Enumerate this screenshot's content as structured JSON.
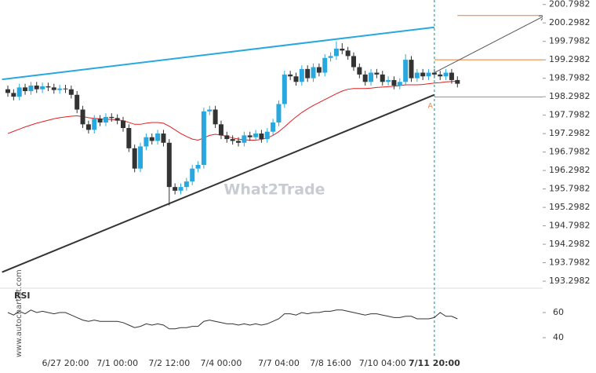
{
  "chart_data": {
    "type": "candlestick",
    "categories": [
      null,
      null,
      null,
      null,
      null,
      null,
      null,
      null,
      null,
      null,
      "6/27 20:00",
      null,
      null,
      null,
      null,
      null,
      null,
      null,
      null,
      "7/1 00:00",
      null,
      null,
      null,
      null,
      null,
      null,
      null,
      null,
      "7/2 12:00",
      null,
      null,
      null,
      null,
      null,
      null,
      null,
      null,
      "7/4 00:00",
      null,
      null,
      null,
      null,
      null,
      null,
      null,
      null,
      null,
      "7/7 04:00",
      null,
      null,
      null,
      null,
      null,
      null,
      null,
      null,
      "7/8 16:00",
      null,
      null,
      null,
      null,
      null,
      null,
      null,
      null,
      "7/10 04:00",
      null,
      null,
      null,
      null,
      null,
      null,
      null,
      null,
      "7/11 20:00",
      null,
      null,
      null,
      null
    ],
    "open": [
      198.5,
      198.4,
      198.3,
      198.55,
      198.45,
      198.6,
      198.5,
      198.58,
      198.55,
      198.48,
      198.52,
      198.5,
      198.35,
      197.95,
      197.55,
      197.4,
      197.7,
      197.6,
      197.75,
      197.72,
      197.65,
      197.45,
      196.9,
      196.35,
      196.95,
      197.2,
      197.1,
      197.3,
      197.05,
      195.85,
      195.75,
      195.85,
      196.0,
      196.35,
      196.45,
      197.9,
      197.95,
      197.55,
      197.25,
      197.15,
      197.1,
      197.05,
      197.25,
      197.2,
      197.3,
      197.15,
      197.35,
      197.6,
      198.1,
      198.9,
      198.85,
      198.7,
      199.05,
      198.8,
      199.1,
      198.95,
      199.35,
      199.4,
      199.6,
      199.55,
      199.4,
      199.1,
      198.9,
      198.7,
      198.95,
      198.9,
      198.7,
      198.75,
      198.6,
      198.7,
      199.3,
      198.8,
      198.95,
      198.85,
      198.95,
      198.9,
      198.85,
      198.95,
      198.75
    ],
    "high": [
      198.6,
      198.5,
      198.65,
      198.65,
      198.7,
      198.7,
      198.68,
      198.68,
      198.65,
      198.62,
      198.62,
      198.6,
      198.45,
      198.05,
      197.65,
      197.8,
      197.8,
      197.85,
      197.85,
      197.82,
      197.75,
      197.55,
      197.0,
      197.05,
      197.3,
      197.3,
      197.4,
      197.4,
      197.15,
      195.95,
      195.95,
      196.1,
      196.45,
      196.55,
      198.0,
      198.05,
      198.05,
      197.65,
      197.35,
      197.25,
      197.2,
      197.35,
      197.35,
      197.4,
      197.4,
      197.45,
      197.7,
      198.2,
      199.0,
      199.0,
      198.95,
      199.15,
      199.15,
      199.2,
      199.2,
      199.45,
      199.5,
      199.8,
      199.75,
      199.65,
      199.5,
      199.2,
      199.0,
      199.05,
      199.05,
      199.0,
      198.85,
      198.85,
      198.8,
      199.45,
      199.4,
      199.05,
      199.05,
      199.05,
      199.05,
      199.0,
      199.05,
      199.05,
      198.85
    ],
    "low": [
      198.3,
      198.2,
      198.2,
      198.35,
      198.35,
      198.4,
      198.4,
      198.45,
      198.38,
      198.38,
      198.4,
      198.25,
      197.85,
      197.45,
      197.3,
      197.3,
      197.5,
      197.5,
      197.62,
      197.55,
      197.35,
      196.8,
      196.25,
      196.25,
      196.85,
      197.0,
      197.0,
      196.95,
      195.35,
      195.65,
      195.65,
      195.75,
      195.9,
      196.25,
      196.35,
      197.8,
      197.45,
      197.15,
      197.05,
      197.0,
      196.95,
      196.95,
      197.1,
      197.1,
      197.05,
      197.05,
      197.25,
      197.5,
      198.0,
      198.75,
      198.6,
      198.6,
      198.7,
      198.7,
      198.85,
      198.85,
      199.25,
      199.3,
      199.45,
      199.3,
      199.0,
      198.8,
      198.6,
      198.6,
      198.8,
      198.6,
      198.6,
      198.5,
      198.5,
      198.6,
      198.7,
      198.7,
      198.75,
      198.75,
      198.8,
      198.75,
      198.75,
      198.65,
      198.55
    ],
    "close": [
      198.4,
      198.3,
      198.55,
      198.45,
      198.6,
      198.5,
      198.58,
      198.55,
      198.48,
      198.52,
      198.5,
      198.35,
      197.95,
      197.55,
      197.4,
      197.7,
      197.6,
      197.75,
      197.72,
      197.65,
      197.45,
      196.9,
      196.35,
      196.95,
      197.2,
      197.1,
      197.3,
      197.05,
      195.85,
      195.75,
      195.85,
      196.0,
      196.35,
      196.45,
      197.9,
      197.95,
      197.55,
      197.25,
      197.15,
      197.1,
      197.05,
      197.25,
      197.2,
      197.3,
      197.15,
      197.35,
      197.6,
      198.1,
      198.9,
      198.85,
      198.7,
      199.05,
      198.8,
      199.1,
      198.95,
      199.35,
      199.4,
      199.6,
      199.55,
      199.4,
      199.1,
      198.9,
      198.7,
      198.95,
      198.9,
      198.7,
      198.75,
      198.6,
      198.7,
      199.3,
      198.8,
      198.95,
      198.85,
      198.95,
      198.9,
      198.85,
      198.95,
      198.75,
      198.65
    ],
    "up_color": "#29a8e0",
    "down_color": "#333333",
    "ylim": [
      193.15,
      200.92
    ],
    "yticks": [
      200.7982,
      200.2982,
      199.7982,
      199.2982,
      198.7982,
      198.2982,
      197.7982,
      197.2982,
      196.7982,
      196.2982,
      195.7982,
      195.2982,
      194.7982,
      194.2982,
      193.7982,
      193.2982
    ],
    "ma": {
      "color": "#e02020",
      "values": [
        197.3,
        197.36,
        197.42,
        197.48,
        197.53,
        197.58,
        197.62,
        197.66,
        197.7,
        197.73,
        197.75,
        197.77,
        197.78,
        197.76,
        197.73,
        197.71,
        197.7,
        197.69,
        197.68,
        197.67,
        197.65,
        197.6,
        197.55,
        197.55,
        197.58,
        197.6,
        197.6,
        197.58,
        197.5,
        197.4,
        197.3,
        197.22,
        197.15,
        197.12,
        197.18,
        197.25,
        197.28,
        197.26,
        197.22,
        197.18,
        197.15,
        197.13,
        197.12,
        197.12,
        197.14,
        197.18,
        197.25,
        197.35,
        197.48,
        197.62,
        197.75,
        197.87,
        197.97,
        198.06,
        198.14,
        198.22,
        198.3,
        198.38,
        198.45,
        198.5,
        198.52,
        198.52,
        198.52,
        198.53,
        198.55,
        198.56,
        198.57,
        198.58,
        198.6,
        198.62,
        198.62,
        198.62,
        198.63,
        198.65,
        198.67,
        198.68,
        198.7,
        198.71,
        198.72
      ]
    },
    "rsi": {
      "label": "RSI",
      "color": "#333333",
      "ylim": [
        27.5,
        77.5
      ],
      "yticks": [
        60,
        40
      ],
      "values": [
        60,
        58,
        61,
        59,
        62,
        60,
        61,
        60,
        59,
        60,
        60,
        58,
        56,
        54,
        53,
        54,
        53,
        53,
        53,
        53,
        52,
        50,
        48,
        49,
        51,
        50,
        51,
        50,
        47,
        47,
        48,
        48,
        49,
        49,
        53,
        54,
        53,
        52,
        51,
        51,
        50,
        51,
        50,
        51,
        50,
        51,
        53,
        55,
        59,
        59,
        58,
        60,
        59,
        60,
        60,
        61,
        61,
        62,
        62,
        61,
        60,
        59,
        58,
        59,
        59,
        58,
        57,
        56,
        56,
        57,
        57,
        55,
        55,
        55,
        56,
        60,
        57,
        57,
        55
      ]
    },
    "trendlines": [
      {
        "color": "#29a8e0",
        "x": [
          0,
          74
        ],
        "y": [
          198.787,
          200.18
        ]
      },
      {
        "color": "#333333",
        "x": [
          0,
          74
        ],
        "y": [
          193.607,
          198.35
        ]
      }
    ],
    "levels": [
      {
        "value": 200.5,
        "from": 78,
        "color": "#f07a2a"
      },
      {
        "value": 199.3,
        "from": 74,
        "color": "#f07a2a"
      },
      {
        "value": 198.29,
        "from": 74,
        "color": "#f07a2a"
      }
    ],
    "arrow": {
      "color": "#555555",
      "x": [
        74,
        93.2
      ],
      "y": [
        198.95,
        200.5
      ]
    },
    "marker": {
      "label": "A",
      "x": 73.3,
      "y": 198.05,
      "color": "#f07a2a"
    },
    "current_index": 74,
    "watermark": "What2Trade",
    "credit": "www.autochartist.com"
  }
}
